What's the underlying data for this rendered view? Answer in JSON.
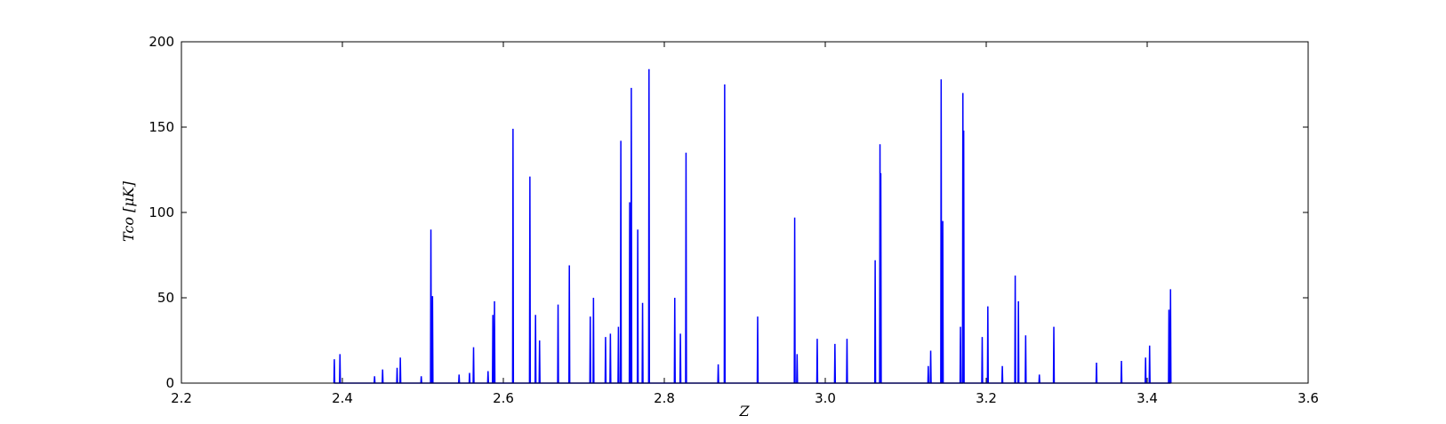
{
  "chart_data": {
    "type": "line",
    "xlabel": "Z",
    "ylabel": "Tco [μK]",
    "xlim": [
      2.2,
      3.6
    ],
    "ylim": [
      0,
      200
    ],
    "xticks": [
      2.2,
      2.4,
      2.6,
      2.8,
      {
        "value": 3,
        "label": "3.0"
      },
      3.2,
      3.4,
      3.6
    ],
    "yticks": [
      0,
      50,
      100,
      150,
      200
    ],
    "grid": false,
    "series": [
      {
        "name": "T_co",
        "color": "#0000ff",
        "x": [
          2.3895,
          2.39,
          2.3905,
          2.3965,
          2.397,
          2.3975,
          2.4395,
          2.44,
          2.4405,
          2.4495,
          2.45,
          2.4505,
          2.4675,
          2.468,
          2.4685,
          2.4715,
          2.472,
          2.4725,
          2.4975,
          2.498,
          2.4985,
          2.5095,
          2.51,
          2.5105,
          2.5115,
          2.512,
          2.5125,
          2.5445,
          2.545,
          2.5455,
          2.5575,
          2.558,
          2.5585,
          2.5625,
          2.563,
          2.5635,
          2.5805,
          2.581,
          2.5815,
          2.5865,
          2.587,
          2.5875,
          2.5885,
          2.589,
          2.5895,
          2.6115,
          2.612,
          2.6125,
          2.6325,
          2.633,
          2.6335,
          2.6395,
          2.64,
          2.6405,
          2.6445,
          2.645,
          2.6455,
          2.6675,
          2.668,
          2.6685,
          2.6815,
          2.682,
          2.6825,
          2.7075,
          2.708,
          2.7085,
          2.7115,
          2.712,
          2.7125,
          2.7265,
          2.727,
          2.7275,
          2.7325,
          2.733,
          2.7335,
          2.7425,
          2.743,
          2.7435,
          2.7455,
          2.746,
          2.7465,
          2.7565,
          2.757,
          2.7575,
          2.7585,
          2.759,
          2.7595,
          2.7665,
          2.767,
          2.7675,
          2.7725,
          2.773,
          2.7735,
          2.7805,
          2.781,
          2.7815,
          2.8125,
          2.813,
          2.8135,
          2.8195,
          2.82,
          2.8205,
          2.8265,
          2.827,
          2.8275,
          2.8665,
          2.867,
          2.8675,
          2.8745,
          2.875,
          2.8755,
          2.9155,
          2.916,
          2.9165,
          2.9615,
          2.962,
          2.9625,
          2.9645,
          2.965,
          2.9655,
          2.9895,
          2.99,
          2.9905,
          3.0115,
          3.012,
          3.0125,
          3.0265,
          3.027,
          3.0275,
          3.0615,
          3.062,
          3.0625,
          3.0675,
          3.068,
          3.0685,
          3.0685,
          3.069,
          3.0695,
          3.1275,
          3.128,
          3.1285,
          3.1305,
          3.131,
          3.1315,
          3.1435,
          3.144,
          3.1445,
          3.1455,
          3.146,
          3.1465,
          3.1675,
          3.168,
          3.1685,
          3.1705,
          3.171,
          3.1715,
          3.1715,
          3.172,
          3.1725,
          3.1945,
          3.195,
          3.1955,
          3.2015,
          3.202,
          3.2025,
          3.2195,
          3.22,
          3.2205,
          3.2355,
          3.236,
          3.2365,
          3.2395,
          3.24,
          3.2405,
          3.2485,
          3.249,
          3.2495,
          3.2655,
          3.266,
          3.2665,
          3.2835,
          3.284,
          3.2845,
          3.3365,
          3.337,
          3.3375,
          3.3675,
          3.368,
          3.3685,
          3.3975,
          3.398,
          3.3985,
          3.4025,
          3.403,
          3.4035,
          3.4265,
          3.427,
          3.4275,
          3.4285,
          3.429,
          3.4295
        ],
        "values": [
          0,
          14,
          0,
          0,
          17,
          0,
          0,
          4,
          0,
          0,
          8,
          0,
          0,
          9,
          0,
          0,
          15,
          0,
          0,
          4,
          0,
          0,
          90,
          0,
          0,
          51,
          0,
          0,
          5,
          0,
          0,
          6,
          0,
          0,
          21,
          0,
          0,
          7,
          0,
          0,
          40,
          0,
          0,
          48,
          0,
          0,
          149,
          0,
          0,
          121,
          0,
          0,
          40,
          0,
          0,
          25,
          0,
          0,
          46,
          0,
          0,
          69,
          0,
          0,
          39,
          0,
          0,
          50,
          0,
          0,
          27,
          0,
          0,
          29,
          0,
          0,
          33,
          0,
          0,
          142,
          0,
          0,
          106,
          0,
          0,
          173,
          0,
          0,
          90,
          0,
          0,
          47,
          0,
          0,
          184,
          0,
          0,
          50,
          0,
          0,
          29,
          0,
          0,
          135,
          0,
          0,
          11,
          0,
          0,
          175,
          0,
          0,
          39,
          0,
          0,
          97,
          0,
          0,
          17,
          0,
          0,
          26,
          0,
          0,
          23,
          0,
          0,
          26,
          0,
          0,
          72,
          0,
          0,
          140,
          0,
          0,
          123,
          0,
          0,
          10,
          0,
          0,
          19,
          0,
          0,
          178,
          0,
          0,
          95,
          0,
          0,
          33,
          0,
          0,
          170,
          0,
          0,
          148,
          0,
          0,
          27,
          0,
          0,
          45,
          0,
          0,
          10,
          0,
          0,
          63,
          0,
          0,
          48,
          0,
          0,
          28,
          0,
          0,
          5,
          0,
          0,
          33,
          0,
          0,
          12,
          0,
          0,
          13,
          0,
          0,
          15,
          0,
          0,
          22,
          0,
          0,
          43,
          0,
          0,
          55,
          0
        ]
      }
    ]
  }
}
